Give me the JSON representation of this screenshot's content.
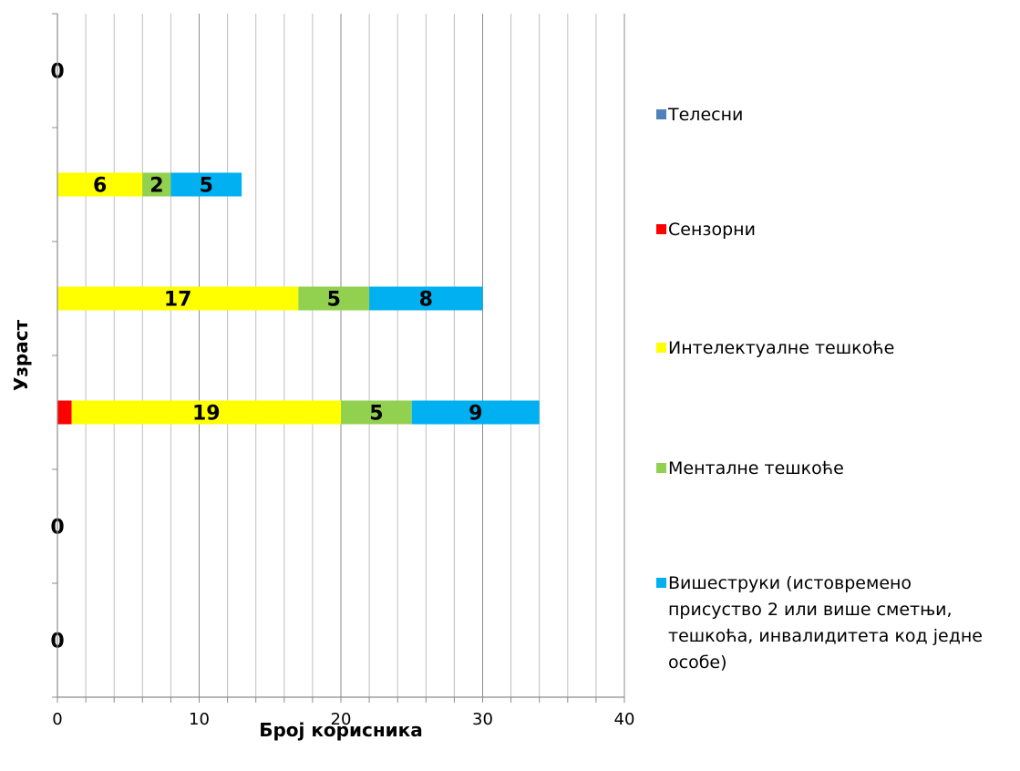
{
  "chart_data": {
    "type": "bar",
    "orientation": "horizontal",
    "stacked": true,
    "title": "",
    "xlabel": "Број корисника",
    "ylabel": "Узраст",
    "xlim": [
      0,
      40
    ],
    "x_ticks": [
      0,
      10,
      20,
      30,
      40
    ],
    "grid": "vertical",
    "legend_position": "right",
    "rows": 6,
    "series": [
      {
        "name": "Телесни",
        "color": "#4F81BD",
        "values": [
          0,
          0,
          0,
          0,
          0,
          0
        ]
      },
      {
        "name": "Сензорни",
        "color": "#FF0000",
        "values": [
          0,
          0,
          0,
          1,
          0,
          0
        ]
      },
      {
        "name": "Интелектуалне тешкоће",
        "color": "#FFFF00",
        "values": [
          0,
          6,
          17,
          19,
          0,
          0
        ]
      },
      {
        "name": "Менталне тешкоће",
        "color": "#92D050",
        "values": [
          0,
          2,
          5,
          5,
          0,
          0
        ]
      },
      {
        "name": "Вишеструки (истовремено присуство  2 или више сметњи, тешкоћа, инвалидитета код једне особе)",
        "color": "#00B0F0",
        "values": [
          0,
          5,
          8,
          9,
          0,
          0
        ]
      }
    ],
    "data_labels": [
      [
        "0"
      ],
      [
        "6",
        "2",
        "5"
      ],
      [
        "17",
        "5",
        "8"
      ],
      [
        "19",
        "5",
        "9"
      ],
      [
        "0"
      ],
      [
        "0"
      ]
    ],
    "legend_lines": [
      [
        "Телесни"
      ],
      [
        "Сензорни"
      ],
      [
        "Интелектуалне тешкоће"
      ],
      [
        "Менталне тешкоће"
      ],
      [
        "Вишеструки (истовремено",
        "присуство  2 или више сметњи,",
        "тешкоћа, инвалидитета код једне",
        "особе)"
      ]
    ]
  }
}
